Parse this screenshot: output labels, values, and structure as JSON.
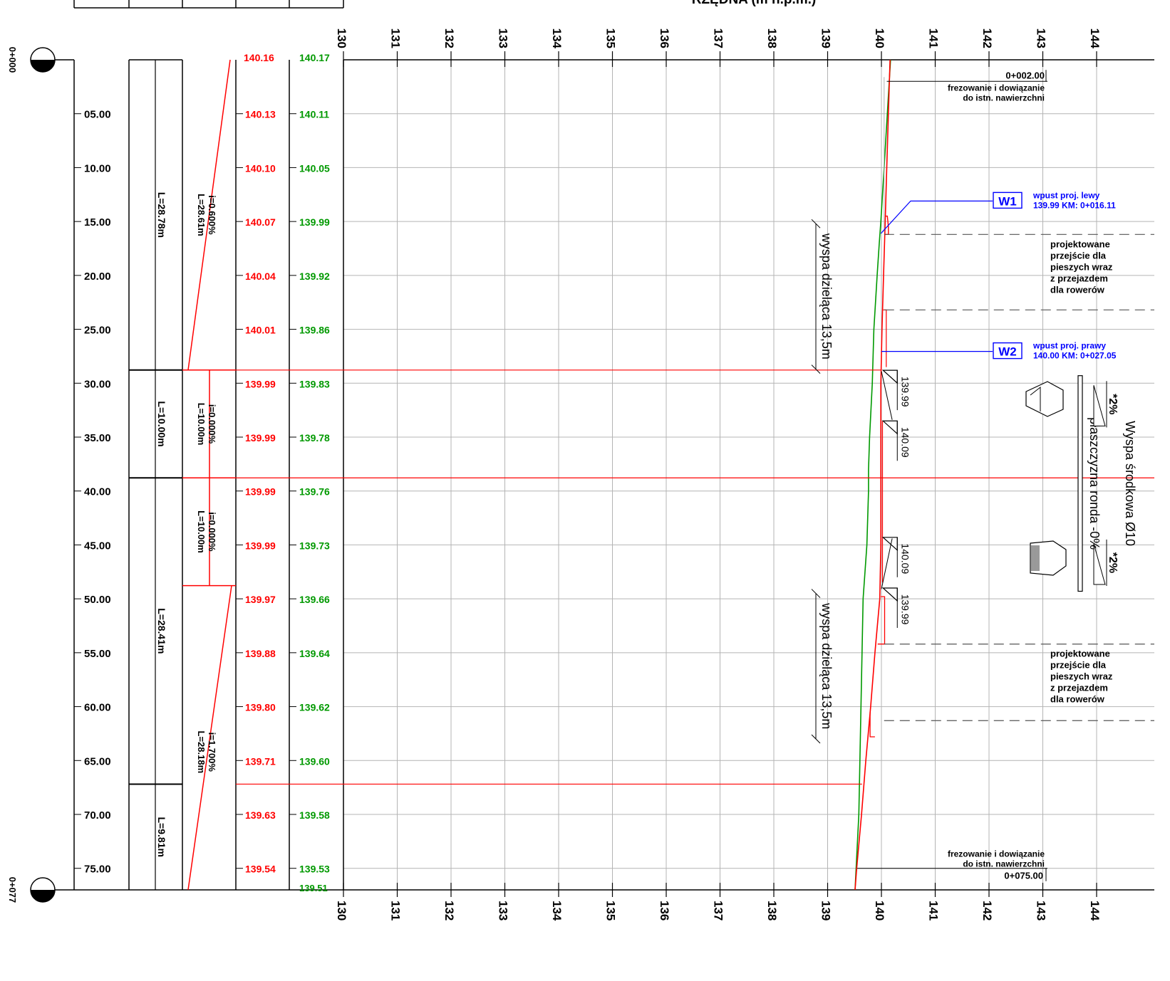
{
  "header": {
    "axis_title": "RZĘDNA (m n.p.m.)"
  },
  "chainage": {
    "start": "0+000",
    "end": "0+077"
  },
  "distances": [
    "05.00",
    "10.00",
    "15.00",
    "20.00",
    "25.00",
    "30.00",
    "35.00",
    "40.00",
    "45.00",
    "50.00",
    "55.00",
    "60.00",
    "65.00",
    "70.00",
    "75.00"
  ],
  "distance_values": [
    5,
    10,
    15,
    20,
    25,
    30,
    35,
    40,
    45,
    50,
    55,
    60,
    65,
    70,
    75
  ],
  "elevation_ticks": [
    "130",
    "131",
    "132",
    "133",
    "134",
    "135",
    "136",
    "137",
    "138",
    "139",
    "140",
    "141",
    "142",
    "143",
    "144"
  ],
  "elevation_values": [
    130,
    131,
    132,
    133,
    134,
    135,
    136,
    137,
    138,
    139,
    140,
    141,
    142,
    143,
    144
  ],
  "lengths": [
    {
      "label": "L=28.78m",
      "from": 0,
      "to": 28.78
    },
    {
      "label": "L=10.00m",
      "from": 28.78,
      "to": 38.78
    },
    {
      "label": "L=28.41m",
      "from": 38.78,
      "to": 67.19
    },
    {
      "label": "L=9.81m",
      "from": 67.19,
      "to": 77.0
    }
  ],
  "grades": [
    {
      "i": "i=0.600%",
      "l": "L=28.61m"
    },
    {
      "i": "i=0.000%",
      "l": "L=10.00m"
    },
    {
      "i": "i=0.000%",
      "l": "L=10.00m"
    },
    {
      "i": "i=1.700%",
      "l": "L=28.18m"
    }
  ],
  "design_top": "140.16",
  "existing_top": "140.17",
  "design_elev": [
    "140.13",
    "140.10",
    "140.07",
    "140.04",
    "140.01",
    "139.99",
    "139.99",
    "139.99",
    "139.99",
    "139.97",
    "139.88",
    "139.80",
    "139.71",
    "139.63",
    "139.54"
  ],
  "existing_elev": [
    "140.11",
    "140.05",
    "139.99",
    "139.92",
    "139.86",
    "139.83",
    "139.78",
    "139.76",
    "139.73",
    "139.66",
    "139.64",
    "139.62",
    "139.60",
    "139.58",
    "139.53"
  ],
  "existing_bottom": "139.51",
  "annotations": {
    "start_ch": "0+002.00",
    "milling_start_1": "frezowanie i dowiązanie",
    "milling_start_2": "do istn. nawierzchni",
    "milling_end_1": "frezowanie i dowiązanie",
    "milling_end_2": "do istn. nawierzchni",
    "end_ch": "0+075.00",
    "w1": "W1",
    "w1_text_1": "wpust proj. lewy",
    "w1_text_2": "139.99 KM: 0+016.11",
    "w2": "W2",
    "w2_text_1": "wpust proj. prawy",
    "w2_text_2": "140.00 KM: 0+027.05",
    "crossing1": [
      "projektowane",
      "przejście dla",
      "pieszych wraz",
      "z przejazdem",
      "dla rowerów"
    ],
    "crossing2": [
      "projektowane",
      "przejście dla",
      "pieszych wraz",
      "z przejazdem",
      "dla rowerów"
    ],
    "island1": "wyspa dzieląca 13,5m",
    "island2": "wyspa dzieląca 13,5m",
    "lvl_1": "139.99",
    "lvl_2": "140.09",
    "lvl_3": "140.09",
    "lvl_4": "139.99",
    "slope_1": "*2%",
    "slope_2": "*2%",
    "ronda": "płaszczyzna ronda -0%",
    "island_mid": "Wyspa środkowa Ø10"
  },
  "colors": {
    "design": "#ff0000",
    "existing": "#009900",
    "inlet": "#0000ff",
    "grid": "#b4b4b4",
    "ink": "#000000"
  }
}
